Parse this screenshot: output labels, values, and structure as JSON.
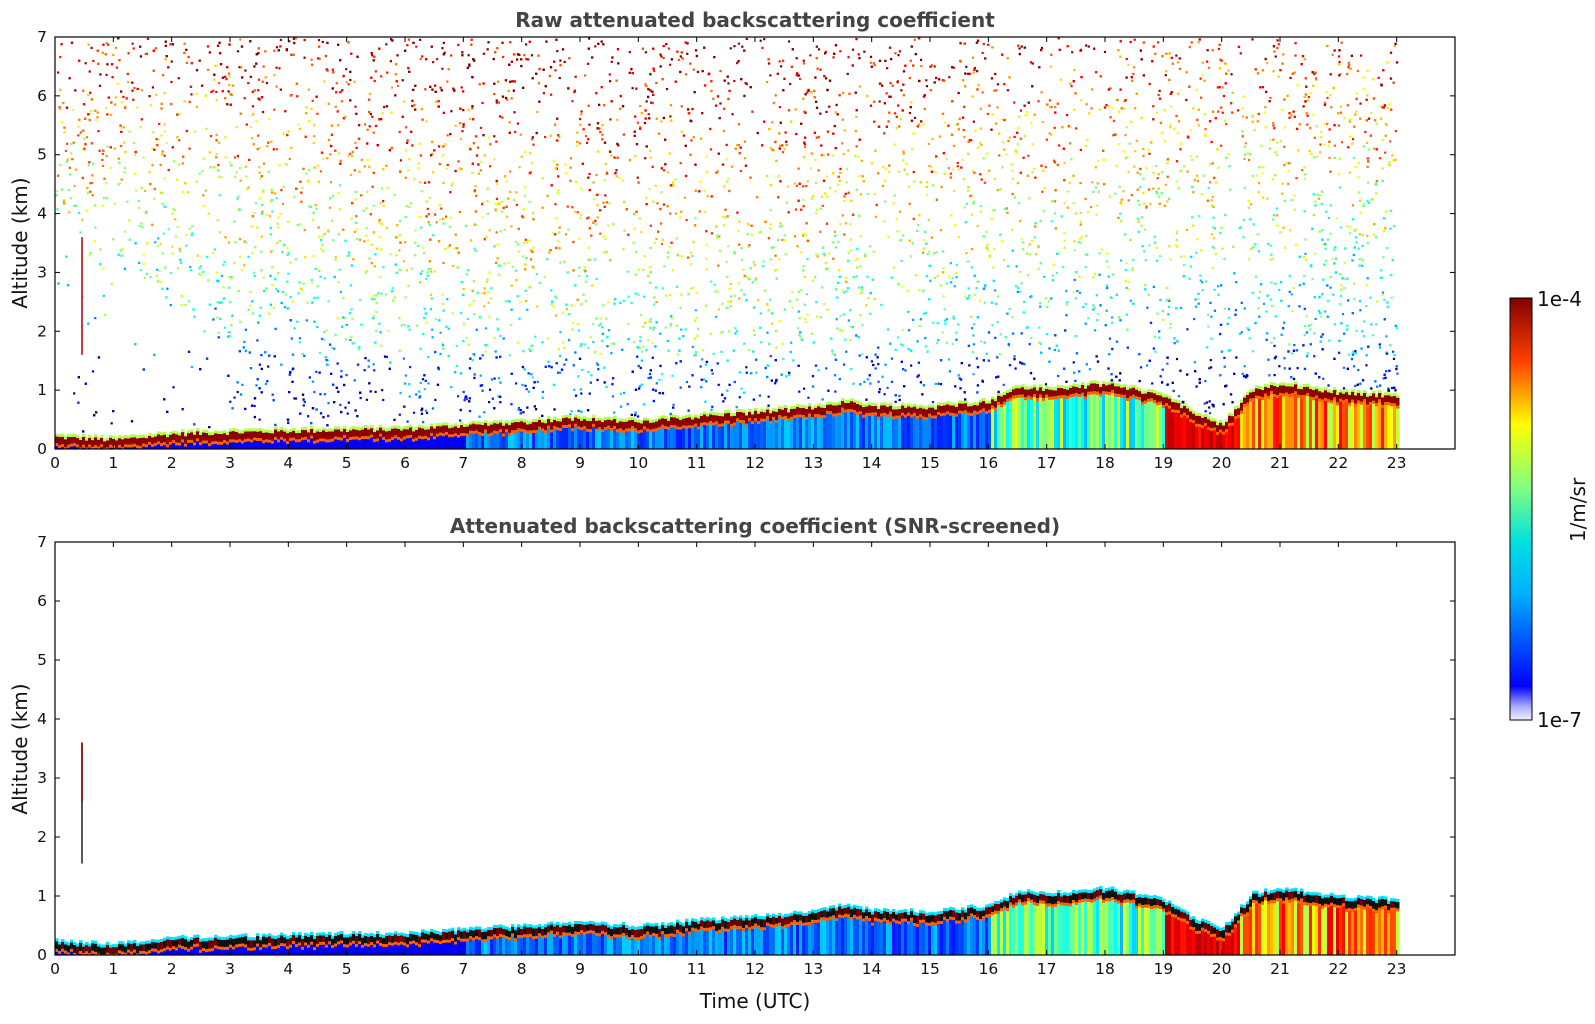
{
  "chart_data": [
    {
      "type": "heatmap",
      "title": "Raw attenuated backscattering coefficient",
      "xlabel": "",
      "ylabel": "Altitude (km)",
      "xlim": [
        0,
        24
      ],
      "ylim": [
        0,
        7
      ],
      "xticks": [
        "0",
        "1",
        "2",
        "3",
        "4",
        "5",
        "6",
        "7",
        "8",
        "9",
        "10",
        "11",
        "12",
        "13",
        "14",
        "15",
        "16",
        "17",
        "18",
        "19",
        "20",
        "21",
        "22",
        "23"
      ],
      "yticks": [
        "0",
        "1",
        "2",
        "3",
        "4",
        "5",
        "6",
        "7"
      ],
      "data_time_range": [
        0,
        23
      ],
      "boundary_layer_top_km": {
        "x": [
          0,
          1,
          2,
          3,
          4,
          5,
          6,
          7,
          8,
          9,
          10,
          11,
          12,
          13,
          13.5,
          14,
          15,
          16,
          16.5,
          17,
          18,
          18.5,
          19,
          19.5,
          20,
          20.5,
          21,
          22,
          23
        ],
        "y": [
          0.2,
          0.15,
          0.25,
          0.28,
          0.3,
          0.32,
          0.33,
          0.4,
          0.45,
          0.52,
          0.45,
          0.55,
          0.62,
          0.7,
          0.8,
          0.72,
          0.7,
          0.8,
          1.05,
          1.0,
          1.1,
          1.0,
          0.9,
          0.6,
          0.4,
          1.0,
          1.1,
          0.95,
          0.9
        ]
      },
      "noise_pattern": "high-altitude noise increasing with height; sparse at low altitude early in the day (0-3 UTC)"
    },
    {
      "type": "heatmap",
      "title": "Attenuated backscattering coefficient (SNR-screened)",
      "xlabel": "Time (UTC)",
      "ylabel": "Altitude (km)",
      "xlim": [
        0,
        24
      ],
      "ylim": [
        0,
        7
      ],
      "xticks": [
        "0",
        "1",
        "2",
        "3",
        "4",
        "5",
        "6",
        "7",
        "8",
        "9",
        "10",
        "11",
        "12",
        "13",
        "14",
        "15",
        "16",
        "17",
        "18",
        "19",
        "20",
        "21",
        "22",
        "23"
      ],
      "yticks": [
        "0",
        "1",
        "2",
        "3",
        "4",
        "5",
        "6",
        "7"
      ],
      "data_time_range": [
        0,
        23
      ],
      "boundary_layer_top_km": {
        "x": [
          0,
          1,
          2,
          3,
          4,
          5,
          6,
          7,
          8,
          9,
          10,
          11,
          12,
          13,
          13.5,
          14,
          15,
          16,
          16.5,
          17,
          18,
          18.5,
          19,
          19.5,
          20,
          20.5,
          21,
          22,
          23
        ],
        "y": [
          0.2,
          0.15,
          0.25,
          0.28,
          0.3,
          0.32,
          0.33,
          0.4,
          0.45,
          0.52,
          0.45,
          0.55,
          0.62,
          0.7,
          0.8,
          0.72,
          0.7,
          0.8,
          1.05,
          1.0,
          1.1,
          1.0,
          0.9,
          0.6,
          0.4,
          1.0,
          1.1,
          0.95,
          0.9
        ]
      },
      "noise_pattern": "screened: only low-level aerosol layer retained; a thin vertical streak near 0.45 UTC from ~1.6 to ~3.6 km"
    }
  ],
  "colorbar": {
    "max_label": "1e-4",
    "min_label": "1e-7",
    "unit_label": "1/m/sr",
    "scale": "log",
    "colormap": "jet"
  }
}
